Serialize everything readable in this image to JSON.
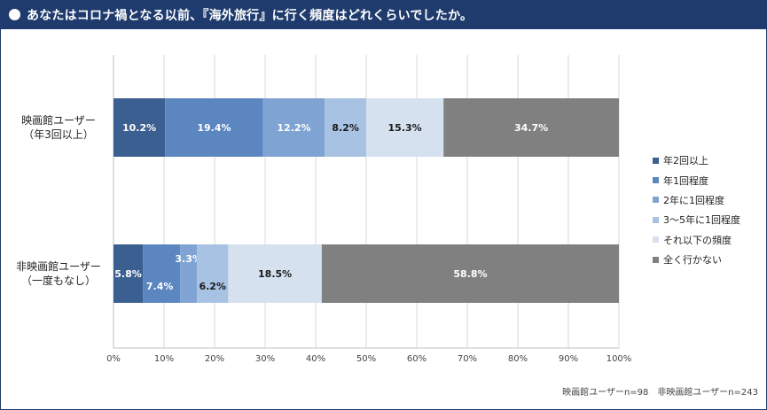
{
  "header": {
    "title": "あなたはコロナ禍となる以前、『海外旅行』に行く頻度はどれくらいでしたか。"
  },
  "colors": {
    "header_bg": "#1f3b6d",
    "series": [
      "#3b5f91",
      "#5b86c0",
      "#7fa3d3",
      "#a8c2e3",
      "#d5e1ef",
      "#808080"
    ]
  },
  "chart_data": {
    "type": "bar",
    "orientation": "horizontal",
    "stacked": true,
    "categories": [
      {
        "line1": "映画館ユーザー",
        "line2": "（年3回以上）"
      },
      {
        "line1": "非映画館ユーザー",
        "line2": "（一度もなし）"
      }
    ],
    "series": [
      {
        "name": "年2回以上",
        "values": [
          10.2,
          5.8
        ],
        "labels": [
          "10.2%",
          "5.8%"
        ]
      },
      {
        "name": "年1回程度",
        "values": [
          19.4,
          7.4
        ],
        "labels": [
          "19.4%",
          "7.4%"
        ]
      },
      {
        "name": "2年に1回程度",
        "values": [
          12.2,
          3.3
        ],
        "labels": [
          "12.2%",
          "3.3%"
        ]
      },
      {
        "name": "3～5年に1回程度",
        "values": [
          8.2,
          6.2
        ],
        "labels": [
          "8.2%",
          "6.2%"
        ]
      },
      {
        "name": "それ以下の頻度",
        "values": [
          15.3,
          18.5
        ],
        "labels": [
          "15.3%",
          "18.5%"
        ]
      },
      {
        "name": "全く行かない",
        "values": [
          34.7,
          58.8
        ],
        "labels": [
          "34.7%",
          "58.8%"
        ]
      }
    ],
    "xlim": [
      0,
      100
    ],
    "x_ticks": [
      "0%",
      "10%",
      "20%",
      "30%",
      "40%",
      "50%",
      "60%",
      "70%",
      "80%",
      "90%",
      "100%"
    ],
    "grid": true,
    "legend_position": "right"
  },
  "footnote": "映画館ユーザーn=98　非映画館ユーザーn=243"
}
